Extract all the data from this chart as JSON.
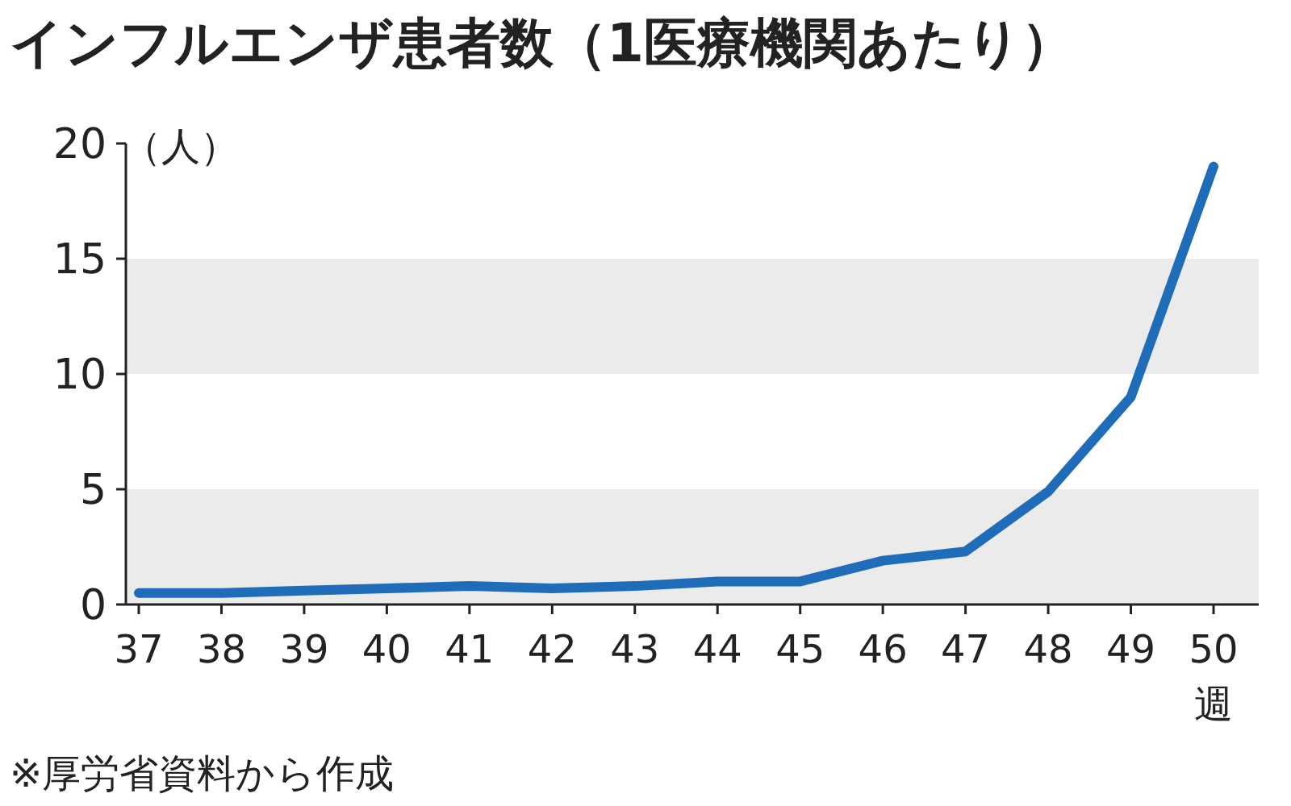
{
  "chart_data": {
    "type": "line",
    "title": "インフルエンザ患者数（1医療機関あたり）",
    "ylabel": "（人）",
    "xlabel": "週",
    "categories": [
      "37",
      "38",
      "39",
      "40",
      "41",
      "42",
      "43",
      "44",
      "45",
      "46",
      "47",
      "48",
      "49",
      "50"
    ],
    "series": [
      {
        "color": "#1f6cb8",
        "values": [
          0.5,
          0.5,
          0.6,
          0.7,
          0.8,
          0.7,
          0.8,
          1.0,
          1.0,
          1.9,
          2.3,
          4.9,
          9.0,
          19.0
        ]
      }
    ],
    "ylim": [
      0,
      20
    ],
    "yticks": [
      0,
      5,
      10,
      15,
      20
    ],
    "bands": [
      {
        "axis": "y",
        "from": 0,
        "to": 5,
        "color": "#ebebeb"
      },
      {
        "axis": "y",
        "from": 10,
        "to": 15,
        "color": "#ebebeb"
      }
    ],
    "marker": "none",
    "line_style": "solid",
    "annotations": [
      "※厚労省資料から作成"
    ]
  }
}
